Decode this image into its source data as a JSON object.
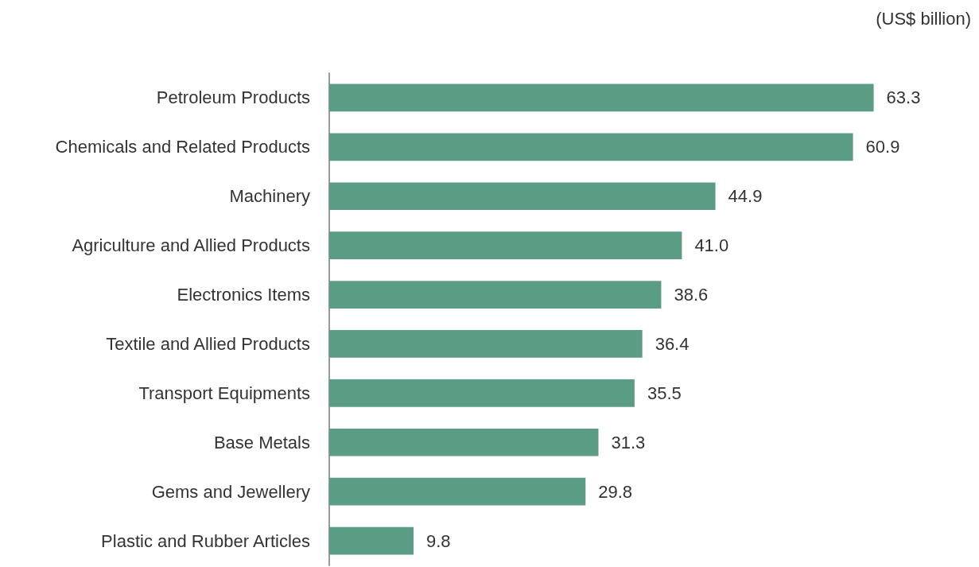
{
  "chart_data": {
    "type": "bar",
    "orientation": "horizontal",
    "categories": [
      "Petroleum Products",
      "Chemicals and Related Products",
      "Machinery",
      "Agriculture and Allied Products",
      "Electronics Items",
      "Textile and Allied Products",
      "Transport Equipments",
      "Base Metals",
      "Gems and Jewellery",
      "Plastic and Rubber Articles"
    ],
    "values": [
      63.3,
      60.9,
      44.9,
      41.0,
      38.6,
      36.4,
      35.5,
      31.3,
      29.8,
      9.8
    ],
    "value_labels": [
      "63.3",
      "60.9",
      "44.9",
      "41.0",
      "38.6",
      "36.4",
      "35.5",
      "31.3",
      "29.8",
      "9.8"
    ],
    "color": "#5a9c84",
    "annotations": [
      "(US$ billion)"
    ],
    "grid": false
  }
}
